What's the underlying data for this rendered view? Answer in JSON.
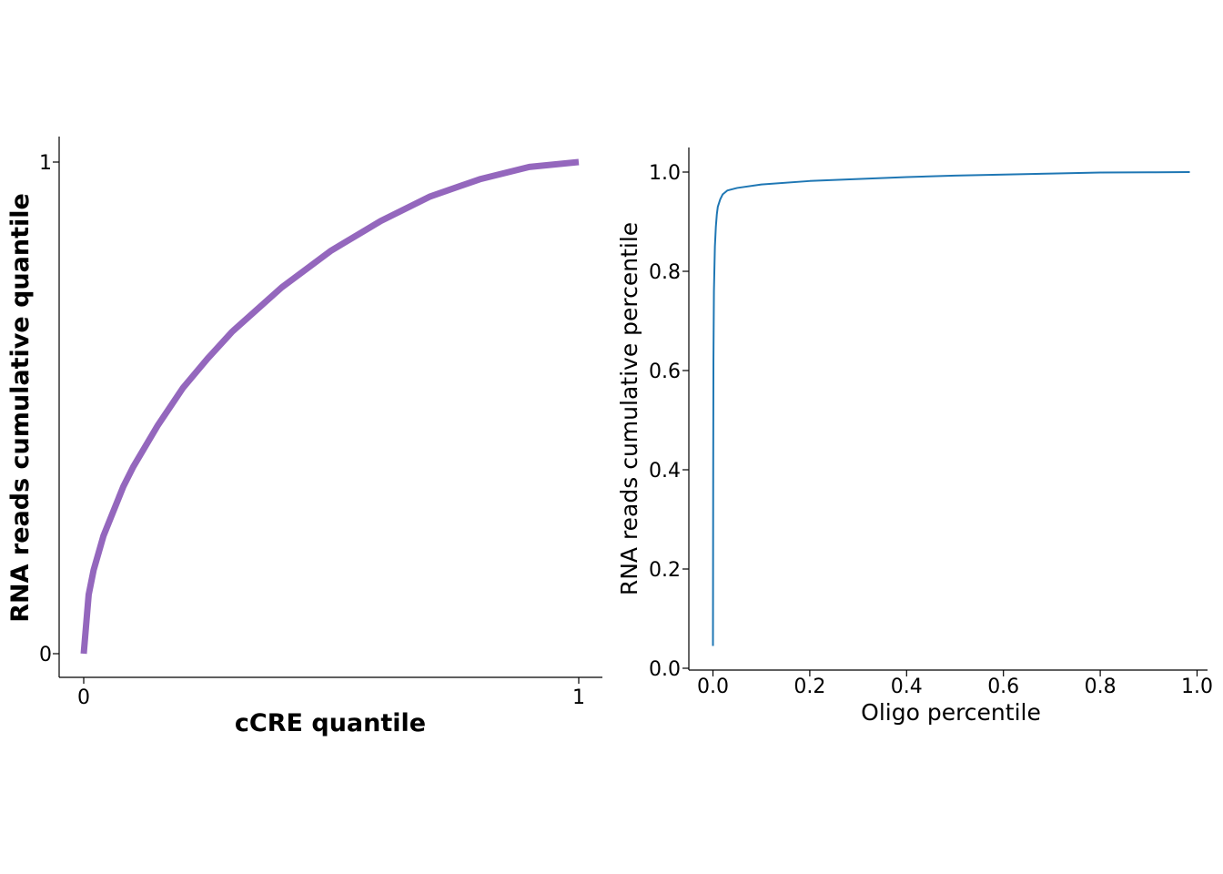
{
  "chart_data": [
    {
      "type": "line",
      "xlabel": "cCRE quantile",
      "ylabel": "RNA reads cumulative quantile",
      "xlim": [
        -0.05,
        1.05
      ],
      "ylim": [
        -0.05,
        1.05
      ],
      "xticks": [
        0,
        1
      ],
      "xtick_labels": [
        "0",
        "1"
      ],
      "yticks": [
        0,
        1
      ],
      "ytick_labels": [
        "0",
        "1"
      ],
      "grid": false,
      "color": "#9467bd",
      "series": [
        {
          "x": [
            0,
            0.01,
            0.02,
            0.04,
            0.06,
            0.08,
            0.1,
            0.15,
            0.2,
            0.25,
            0.3,
            0.4,
            0.5,
            0.6,
            0.7,
            0.8,
            0.9,
            1.0
          ],
          "y": [
            0,
            0.12,
            0.17,
            0.24,
            0.29,
            0.34,
            0.38,
            0.465,
            0.54,
            0.6,
            0.655,
            0.745,
            0.82,
            0.88,
            0.93,
            0.965,
            0.99,
            1.0
          ]
        }
      ]
    },
    {
      "type": "line",
      "xlabel": "Oligo percentile",
      "ylabel": "RNA reads cumulative percentile",
      "xlim": [
        -0.05,
        1.02
      ],
      "ylim": [
        -0.005,
        1.05
      ],
      "xticks": [
        0,
        0.2,
        0.4,
        0.6,
        0.8,
        1.0
      ],
      "xtick_labels": [
        "0.0",
        "0.2",
        "0.4",
        "0.6",
        "0.8",
        "1.0"
      ],
      "yticks": [
        0,
        0.2,
        0.4,
        0.6,
        0.8,
        1.0
      ],
      "ytick_labels": [
        "0.0",
        "0.2",
        "0.4",
        "0.6",
        "0.8",
        "1.0"
      ],
      "grid": false,
      "color": "#1f77b4",
      "series": [
        {
          "x": [
            0,
            0.0005,
            0.001,
            0.002,
            0.004,
            0.006,
            0.008,
            0.01,
            0.015,
            0.02,
            0.03,
            0.05,
            0.1,
            0.2,
            0.3,
            0.4,
            0.5,
            0.6,
            0.7,
            0.8,
            0.9,
            0.985
          ],
          "y": [
            0.045,
            0.4,
            0.62,
            0.76,
            0.85,
            0.89,
            0.915,
            0.93,
            0.945,
            0.955,
            0.963,
            0.968,
            0.975,
            0.982,
            0.986,
            0.99,
            0.993,
            0.995,
            0.997,
            0.999,
            0.9995,
            1.0
          ]
        }
      ]
    }
  ]
}
